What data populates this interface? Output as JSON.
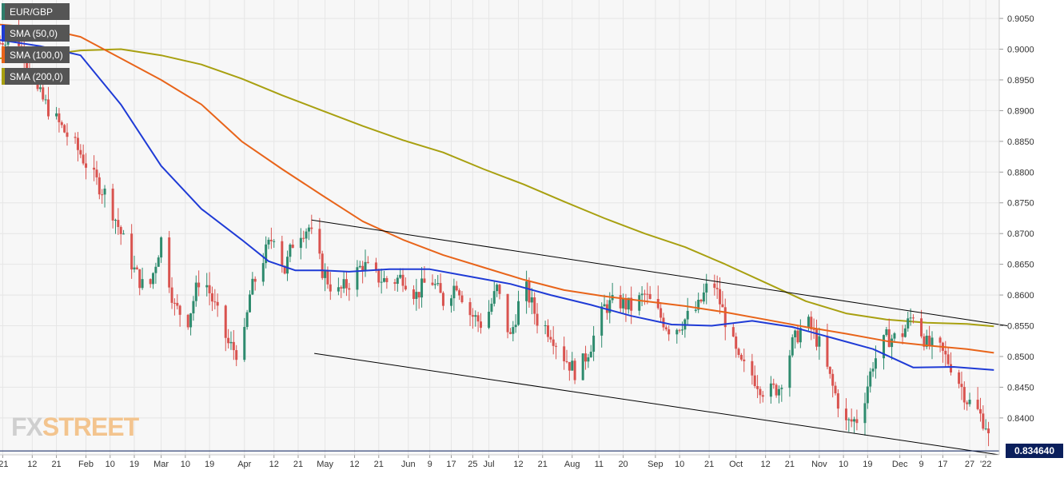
{
  "symbol": "EUR/GBP",
  "legend": [
    {
      "label": "EUR/GBP",
      "color": "#2e7d6b"
    },
    {
      "label": "SMA (50,0)",
      "color": "#1f3bd6"
    },
    {
      "label": "SMA (100,0)",
      "color": "#e8641a"
    },
    {
      "label": "SMA (200,0)",
      "color": "#a8a010"
    }
  ],
  "watermark": {
    "part1": "FX",
    "part2": "STREET"
  },
  "current_price": "0.834640",
  "colors": {
    "up": "#2e8b6e",
    "down": "#d9534f",
    "sma50": "#1f3bd6",
    "sma100": "#e8641a",
    "sma200": "#a8a010",
    "trendline": "#000000",
    "price_line": "#0a1f5c"
  },
  "chart_data": {
    "type": "candlestick",
    "title": "",
    "ylim": [
      0.834,
      0.908
    ],
    "y_ticks": [
      "0.9050",
      "0.9000",
      "0.8950",
      "0.8900",
      "0.8850",
      "0.8800",
      "0.8750",
      "0.8700",
      "0.8650",
      "0.8600",
      "0.8550",
      "0.8500",
      "0.8450",
      "0.8400"
    ],
    "x_tick_labels": [
      "'21",
      "12",
      "21",
      "Feb",
      "10",
      "19",
      "Mar",
      "10",
      "19",
      "Apr",
      "12",
      "21",
      "May",
      "12",
      "21",
      "Jun",
      "9",
      "17",
      "25",
      "Jul",
      "12",
      "21",
      "Aug",
      "11",
      "20",
      "Sep",
      "10",
      "21",
      "Oct",
      "12",
      "21",
      "Nov",
      "10",
      "19",
      "Dec",
      "9",
      "17",
      "27",
      "'22"
    ],
    "x_range_days": [
      0,
      372
    ],
    "x_tick_days": [
      1,
      12,
      21,
      32,
      41,
      50,
      60,
      69,
      78,
      91,
      102,
      111,
      121,
      132,
      141,
      152,
      160,
      168,
      176,
      182,
      193,
      202,
      213,
      223,
      232,
      244,
      253,
      264,
      274,
      285,
      294,
      305,
      314,
      323,
      335,
      343,
      351,
      361,
      367
    ],
    "grid": true,
    "sma50": {
      "name": "SMA (50,0)",
      "day": [
        0,
        15,
        30,
        45,
        60,
        75,
        90,
        100,
        110,
        120,
        130,
        145,
        160,
        175,
        190,
        205,
        220,
        235,
        250,
        265,
        280,
        295,
        310,
        325,
        340,
        355,
        370
      ],
      "value": [
        0.9015,
        0.9005,
        0.899,
        0.891,
        0.881,
        0.874,
        0.869,
        0.8655,
        0.864,
        0.864,
        0.8638,
        0.8642,
        0.8642,
        0.863,
        0.8618,
        0.86,
        0.8584,
        0.8566,
        0.8552,
        0.855,
        0.8558,
        0.8548,
        0.853,
        0.8512,
        0.8482,
        0.8483,
        0.8478
      ]
    },
    "sma100": {
      "name": "SMA (100,0)",
      "day": [
        0,
        15,
        30,
        45,
        60,
        75,
        90,
        105,
        120,
        135,
        150,
        165,
        180,
        195,
        210,
        225,
        240,
        255,
        270,
        285,
        300,
        315,
        330,
        345,
        360,
        370
      ],
      "value": [
        0.904,
        0.9035,
        0.902,
        0.8985,
        0.895,
        0.891,
        0.885,
        0.8805,
        0.8762,
        0.872,
        0.869,
        0.8665,
        0.8645,
        0.8625,
        0.8608,
        0.8598,
        0.859,
        0.8582,
        0.8572,
        0.856,
        0.8548,
        0.8537,
        0.8525,
        0.8518,
        0.8512,
        0.8506
      ]
    },
    "sma200": {
      "name": "SMA (200,0)",
      "day": [
        0,
        15,
        30,
        45,
        60,
        75,
        90,
        105,
        120,
        135,
        150,
        165,
        180,
        195,
        210,
        225,
        240,
        255,
        270,
        285,
        300,
        315,
        330,
        345,
        360,
        370
      ],
      "value": [
        0.8985,
        0.899,
        0.8998,
        0.9,
        0.899,
        0.8975,
        0.8952,
        0.8925,
        0.89,
        0.8875,
        0.8852,
        0.8832,
        0.8805,
        0.878,
        0.8752,
        0.8725,
        0.87,
        0.8678,
        0.865,
        0.862,
        0.859,
        0.857,
        0.856,
        0.8555,
        0.8553,
        0.8549
      ]
    },
    "trendlines": [
      {
        "from": {
          "day": 116,
          "value": 0.8722
        },
        "to": {
          "day": 375,
          "value": 0.855
        }
      },
      {
        "from": {
          "day": 117,
          "value": 0.8505
        },
        "to": {
          "day": 372,
          "value": 0.834
        }
      }
    ],
    "price_line": 0.83464,
    "candles_anchor": {
      "day": [
        0,
        5,
        10,
        14,
        20,
        25,
        30,
        35,
        40,
        45,
        50,
        55,
        60,
        65,
        70,
        75,
        80,
        85,
        90,
        93,
        97,
        102,
        106,
        110,
        115,
        120,
        125,
        130,
        135,
        140,
        145,
        150,
        155,
        160,
        165,
        170,
        175,
        180,
        185,
        190,
        195,
        200,
        205,
        210,
        215,
        220,
        225,
        230,
        235,
        240,
        245,
        250,
        255,
        260,
        265,
        270,
        275,
        280,
        285,
        290,
        295,
        300,
        305,
        310,
        315,
        320,
        325,
        330,
        335,
        340,
        345,
        350,
        355,
        360,
        364,
        367,
        369
      ],
      "close": [
        0.901,
        0.9035,
        0.898,
        0.893,
        0.889,
        0.886,
        0.883,
        0.879,
        0.876,
        0.87,
        0.864,
        0.86,
        0.869,
        0.858,
        0.856,
        0.864,
        0.858,
        0.852,
        0.85,
        0.86,
        0.865,
        0.87,
        0.864,
        0.87,
        0.871,
        0.864,
        0.86,
        0.862,
        0.865,
        0.863,
        0.862,
        0.863,
        0.86,
        0.863,
        0.859,
        0.862,
        0.857,
        0.855,
        0.861,
        0.853,
        0.862,
        0.856,
        0.854,
        0.85,
        0.847,
        0.852,
        0.858,
        0.859,
        0.858,
        0.86,
        0.857,
        0.854,
        0.856,
        0.858,
        0.863,
        0.856,
        0.849,
        0.847,
        0.844,
        0.845,
        0.852,
        0.856,
        0.852,
        0.845,
        0.839,
        0.84,
        0.849,
        0.853,
        0.853,
        0.857,
        0.852,
        0.851,
        0.848,
        0.843,
        0.841,
        0.839,
        0.8346
      ]
    }
  }
}
